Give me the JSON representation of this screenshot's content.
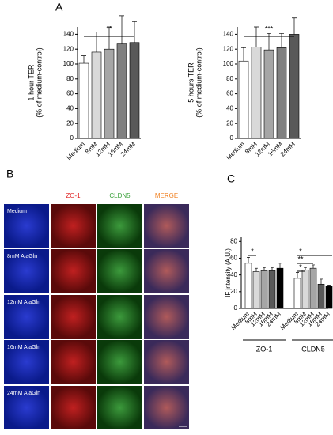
{
  "panel_letters": {
    "a": "A",
    "b": "B",
    "c": "C"
  },
  "chart_data": [
    {
      "type": "bar",
      "ylabel": "1 hour TER",
      "ylabel2": "(% of medium-control)",
      "categories": [
        "Medium",
        "8mM",
        "12mM",
        "16mM",
        "24mM"
      ],
      "values": [
        101,
        116,
        120,
        127,
        129
      ],
      "errors": [
        10,
        27,
        30,
        38,
        28
      ],
      "colors": [
        "#ffffff",
        "#d9d9d9",
        "#a6a6a6",
        "#808080",
        "#595959"
      ],
      "ylim": [
        0,
        150
      ],
      "yticks": [
        0,
        20,
        40,
        60,
        80,
        100,
        120,
        140
      ],
      "annotations": [
        "**"
      ]
    },
    {
      "type": "bar",
      "ylabel": "5 hours TER",
      "ylabel2": "(% of medium-control)",
      "categories": [
        "Medium",
        "8mM",
        "12mM",
        "16mM",
        "24mM"
      ],
      "values": [
        104,
        123,
        119,
        122,
        140
      ],
      "errors": [
        18,
        27,
        22,
        19,
        22
      ],
      "colors": [
        "#ffffff",
        "#d9d9d9",
        "#a6a6a6",
        "#808080",
        "#595959"
      ],
      "ylim": [
        0,
        150
      ],
      "yticks": [
        0,
        20,
        40,
        60,
        80,
        100,
        120,
        140
      ],
      "annotations": [
        "***"
      ]
    },
    {
      "type": "grouped_bar",
      "ylabel": "IF intensity (A.U.)",
      "categories": [
        "Medium",
        "8mM",
        "12mM",
        "16mM",
        "24mM"
      ],
      "colors": [
        "#ffffff",
        "#d9d9d9",
        "#a6a6a6",
        "#595959",
        "#000000"
      ],
      "series": [
        {
          "name": "ZO-1",
          "values": [
            54,
            44,
            45,
            45,
            48
          ],
          "errors": [
            7,
            4,
            4,
            4,
            6
          ]
        },
        {
          "name": "CLDN5",
          "values": [
            36,
            46,
            48,
            29,
            27
          ],
          "errors": [
            7,
            3,
            4,
            6,
            1
          ]
        }
      ],
      "ylim": [
        0,
        85
      ],
      "yticks": [
        0,
        20,
        40,
        60,
        80
      ],
      "annotations": [
        "*",
        "*",
        "**",
        "*"
      ]
    }
  ],
  "images": {
    "columns": [
      "ZO-1",
      "CLDN5",
      "MERGE"
    ],
    "rows": [
      "Medium",
      "8mM AlaGln",
      "12mM AlaGln",
      "16mM AlaGln",
      "24mM AlaGln"
    ]
  }
}
